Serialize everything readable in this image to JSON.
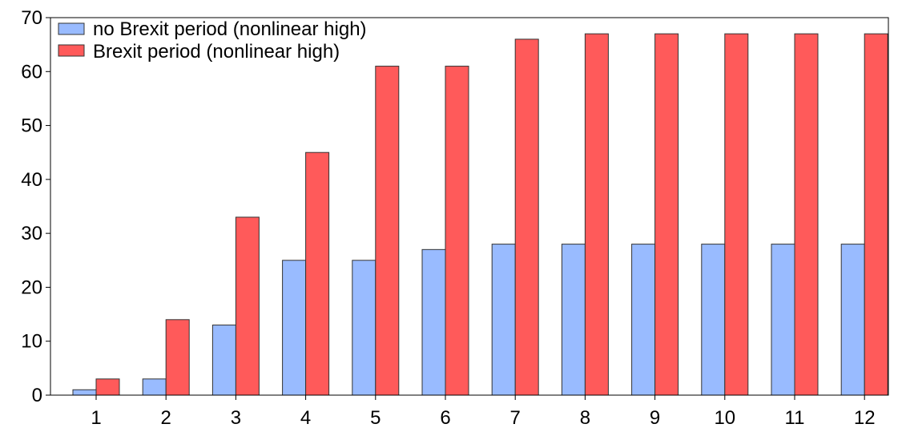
{
  "chart_data": {
    "type": "bar",
    "title": "",
    "xlabel": "",
    "ylabel": "",
    "categories": [
      "1",
      "2",
      "3",
      "4",
      "5",
      "6",
      "7",
      "8",
      "9",
      "10",
      "11",
      "12"
    ],
    "series": [
      {
        "name": "no Brexit period (nonlinear high)",
        "color": "#99bbff",
        "values": [
          1,
          3,
          13,
          25,
          25,
          27,
          28,
          28,
          28,
          28,
          28,
          28
        ]
      },
      {
        "name": "Brexit period (nonlinear high)",
        "color": "#ff5a5a",
        "values": [
          3,
          14,
          33,
          45,
          61,
          61,
          66,
          67,
          67,
          67,
          67,
          67
        ]
      }
    ],
    "ylim": [
      0,
      70
    ],
    "yticks": [
      0,
      10,
      20,
      30,
      40,
      50,
      60,
      70
    ],
    "grid": false,
    "legend_position": "top-left"
  }
}
